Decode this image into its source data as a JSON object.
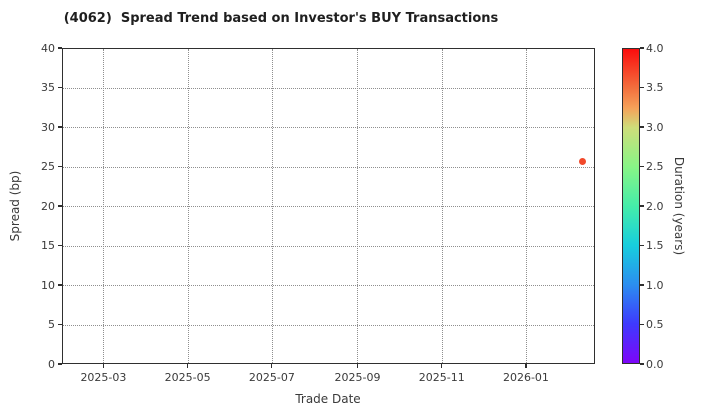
{
  "chart_data": {
    "type": "scatter",
    "title": "(4062)  Spread Trend based on Investor's BUY Transactions",
    "xlabel": "Trade Date",
    "ylabel": "Spread (bp)",
    "grid": "dotted",
    "xlim": [
      "2025-01-30",
      "2026-02-20"
    ],
    "ylim": [
      0,
      40
    ],
    "xticks": [
      {
        "date": "2025-03-01",
        "label": "2025-03"
      },
      {
        "date": "2025-05-01",
        "label": "2025-05"
      },
      {
        "date": "2025-07-01",
        "label": "2025-07"
      },
      {
        "date": "2025-09-01",
        "label": "2025-09"
      },
      {
        "date": "2025-11-01",
        "label": "2025-11"
      },
      {
        "date": "2026-01-01",
        "label": "2026-01"
      }
    ],
    "yticks": [
      {
        "value": 0,
        "label": "0"
      },
      {
        "value": 5,
        "label": "5"
      },
      {
        "value": 10,
        "label": "10"
      },
      {
        "value": 15,
        "label": "15"
      },
      {
        "value": 20,
        "label": "20"
      },
      {
        "value": 25,
        "label": "25"
      },
      {
        "value": 30,
        "label": "30"
      },
      {
        "value": 35,
        "label": "35"
      },
      {
        "value": 40,
        "label": "40"
      }
    ],
    "points": [
      {
        "trade_date": "2026-02-10",
        "spread_bp": 25.8,
        "duration_years": 3.7,
        "color": "#f1492b"
      }
    ],
    "colorbar": {
      "label": "Duration (years)",
      "min": 0.0,
      "max": 4.0,
      "ticks": [
        {
          "value": 0.0,
          "label": "0.0"
        },
        {
          "value": 0.5,
          "label": "0.5"
        },
        {
          "value": 1.0,
          "label": "1.0"
        },
        {
          "value": 1.5,
          "label": "1.5"
        },
        {
          "value": 2.0,
          "label": "2.0"
        },
        {
          "value": 2.5,
          "label": "2.5"
        },
        {
          "value": 3.0,
          "label": "3.0"
        },
        {
          "value": 3.5,
          "label": "3.5"
        },
        {
          "value": 4.0,
          "label": "4.0"
        }
      ],
      "colormap": "rainbow",
      "gradient_stops": [
        {
          "value": 0.0,
          "color": "#7d06f8"
        },
        {
          "value": 0.5,
          "color": "#3e3afd"
        },
        {
          "value": 1.0,
          "color": "#2b8ef0"
        },
        {
          "value": 1.5,
          "color": "#17cedd"
        },
        {
          "value": 2.0,
          "color": "#45eda9"
        },
        {
          "value": 2.5,
          "color": "#88f586"
        },
        {
          "value": 3.0,
          "color": "#cedd7a"
        },
        {
          "value": 3.25,
          "color": "#f5a159"
        },
        {
          "value": 3.5,
          "color": "#f3703e"
        },
        {
          "value": 4.0,
          "color": "#fa0d0d"
        }
      ]
    },
    "style": {
      "background": "#ffffff",
      "grid_color": "#8f8f8f",
      "spine_color": "#2f2f2f",
      "tick_text_color": "#3a3a3a",
      "title_color": "#1f1f1f"
    }
  }
}
